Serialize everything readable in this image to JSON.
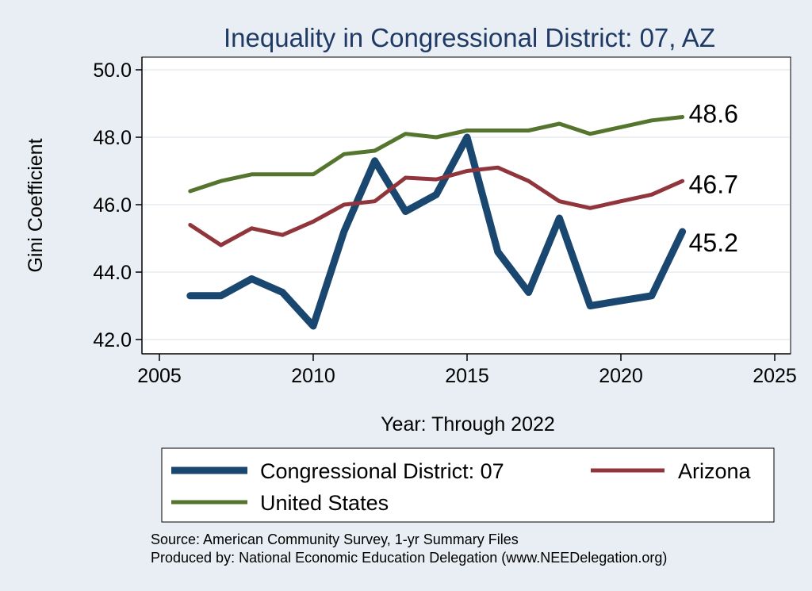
{
  "chart_data": {
    "type": "line",
    "title": "Inequality in Congressional District:  07, AZ",
    "xlabel": "Year: Through 2022",
    "ylabel": "Gini Coefficient",
    "xlim": [
      2005,
      2025
    ],
    "ylim": [
      42,
      50
    ],
    "xticks": [
      2005,
      2010,
      2015,
      2020,
      2025
    ],
    "yticks": [
      42,
      44,
      46,
      48,
      50
    ],
    "ytick_labels": [
      "42.0",
      "44.0",
      "46.0",
      "48.0",
      "50.0"
    ],
    "x": [
      2006,
      2007,
      2008,
      2009,
      2010,
      2011,
      2012,
      2013,
      2014,
      2015,
      2016,
      2017,
      2018,
      2019,
      2020,
      2021,
      2022
    ],
    "series": [
      {
        "name": "Congressional District:  07",
        "color": "#1a476f",
        "values": [
          43.3,
          43.3,
          43.8,
          43.4,
          42.4,
          45.2,
          47.3,
          45.8,
          46.3,
          48.0,
          44.6,
          43.4,
          45.6,
          43.0,
          43.15,
          43.3,
          45.2
        ],
        "end_label": "45.2"
      },
      {
        "name": "Arizona",
        "color": "#90353b",
        "values": [
          45.4,
          44.8,
          45.3,
          45.1,
          45.5,
          46.0,
          46.1,
          46.8,
          46.75,
          47.0,
          47.1,
          46.7,
          46.1,
          45.9,
          46.1,
          46.3,
          46.7
        ],
        "end_label": "46.7"
      },
      {
        "name": "United States",
        "color": "#55752f",
        "values": [
          46.4,
          46.7,
          46.9,
          46.9,
          46.9,
          47.5,
          47.6,
          48.1,
          48.0,
          48.2,
          48.2,
          48.2,
          48.4,
          48.1,
          48.3,
          48.5,
          48.6
        ],
        "end_label": "48.6"
      }
    ],
    "legend": {
      "placement": "bottom",
      "entries": [
        "Congressional District:  07",
        "Arizona",
        "United States"
      ]
    },
    "grid": true
  },
  "source_lines": [
    "Source: American Community Survey, 1-yr Summary Files",
    "Produced by: National Economic Education Delegation (www.NEEDelegation.org)"
  ]
}
